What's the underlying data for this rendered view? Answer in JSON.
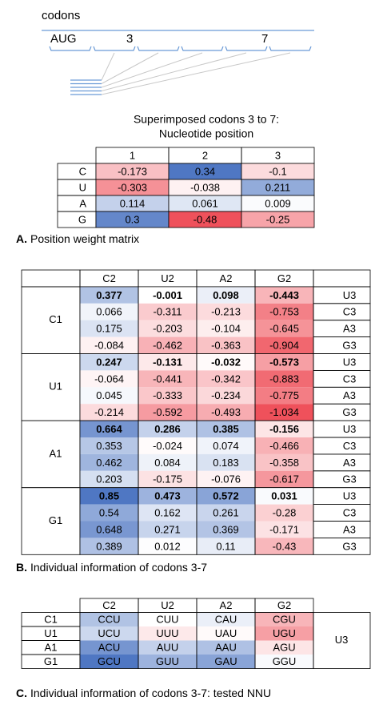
{
  "diagram": {
    "label": "codons",
    "codon_labels": [
      "AUG",
      "3",
      "7"
    ]
  },
  "panel_a": {
    "title": [
      "Superimposed codons 3 to 7:",
      "Nucleotide position"
    ],
    "columns": [
      "1",
      "2",
      "3"
    ],
    "rows": [
      {
        "label": "C",
        "values": [
          -0.173,
          0.34,
          -0.1
        ]
      },
      {
        "label": "U",
        "values": [
          -0.303,
          -0.038,
          0.211
        ]
      },
      {
        "label": "A",
        "values": [
          0.114,
          0.061,
          0.009
        ]
      },
      {
        "label": "G",
        "values": [
          0.3,
          -0.48,
          -0.25
        ]
      }
    ],
    "caption": {
      "letter": "A.",
      "text": "Position weight matrix"
    }
  },
  "panel_b": {
    "columns": [
      "C2",
      "U2",
      "A2",
      "G2"
    ],
    "third": [
      "U3",
      "C3",
      "A3",
      "G3"
    ],
    "groups": [
      {
        "label": "C1",
        "values": [
          [
            0.377,
            -0.001,
            0.098,
            -0.443
          ],
          [
            0.066,
            -0.311,
            -0.213,
            -0.753
          ],
          [
            0.175,
            -0.203,
            -0.104,
            -0.645
          ],
          [
            -0.084,
            -0.462,
            -0.363,
            -0.904
          ]
        ]
      },
      {
        "label": "U1",
        "values": [
          [
            0.247,
            -0.131,
            -0.032,
            -0.573
          ],
          [
            -0.064,
            -0.441,
            -0.342,
            -0.883
          ],
          [
            0.045,
            -0.333,
            -0.234,
            -0.775
          ],
          [
            -0.214,
            -0.592,
            -0.493,
            -1.034
          ]
        ]
      },
      {
        "label": "A1",
        "values": [
          [
            0.664,
            0.286,
            0.385,
            -0.156
          ],
          [
            0.353,
            -0.024,
            0.074,
            -0.466
          ],
          [
            0.462,
            0.084,
            0.183,
            -0.358
          ],
          [
            0.203,
            -0.175,
            -0.076,
            -0.617
          ]
        ]
      },
      {
        "label": "G1",
        "values": [
          [
            0.85,
            0.473,
            0.572,
            0.031
          ],
          [
            0.54,
            0.162,
            0.261,
            -0.28
          ],
          [
            0.648,
            0.271,
            0.369,
            -0.171
          ],
          [
            0.389,
            0.012,
            0.11,
            -0.43
          ]
        ]
      }
    ],
    "caption": {
      "letter": "B.",
      "text": "Individual information of codons 3-7"
    }
  },
  "panel_c": {
    "columns": [
      "C2",
      "U2",
      "A2",
      "G2"
    ],
    "third": "U3",
    "rows": [
      {
        "label": "C1",
        "cells": [
          "CCU",
          "CUU",
          "CAU",
          "CGU"
        ]
      },
      {
        "label": "U1",
        "cells": [
          "UCU",
          "UUU",
          "UAU",
          "UGU"
        ]
      },
      {
        "label": "A1",
        "cells": [
          "ACU",
          "AUU",
          "AAU",
          "AGU"
        ]
      },
      {
        "label": "G1",
        "cells": [
          "GCU",
          "GUU",
          "GAU",
          "GGU"
        ]
      }
    ],
    "caption": {
      "letter": "C.",
      "text": "Individual information of codons 3-7: tested NNU"
    }
  }
}
